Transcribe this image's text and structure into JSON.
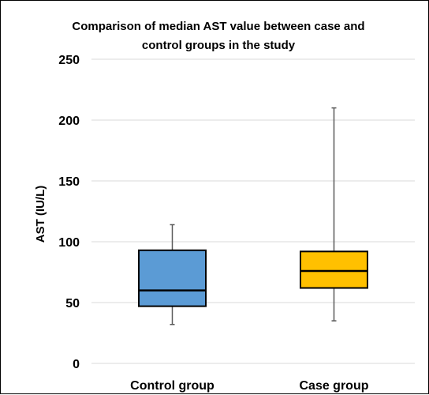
{
  "chart_data": {
    "type": "boxplot",
    "title_lines": [
      "Comparison of median AST value between case and",
      "control groups in the study"
    ],
    "xlabel": "",
    "ylabel": "AST (IU/L)",
    "ylim": [
      0,
      250
    ],
    "yticks": [
      0,
      50,
      100,
      150,
      200,
      250
    ],
    "grid": true,
    "legend": "none",
    "categories": [
      "Control group",
      "Case group"
    ],
    "boxes": [
      {
        "category": "Control group",
        "min": 32,
        "q1": 47,
        "median": 60,
        "q3": 93,
        "max": 114,
        "color": "#5b9bd5"
      },
      {
        "category": "Case group",
        "min": 35,
        "q1": 62,
        "median": 76,
        "q3": 92,
        "max": 210,
        "color": "#ffc000"
      }
    ]
  }
}
